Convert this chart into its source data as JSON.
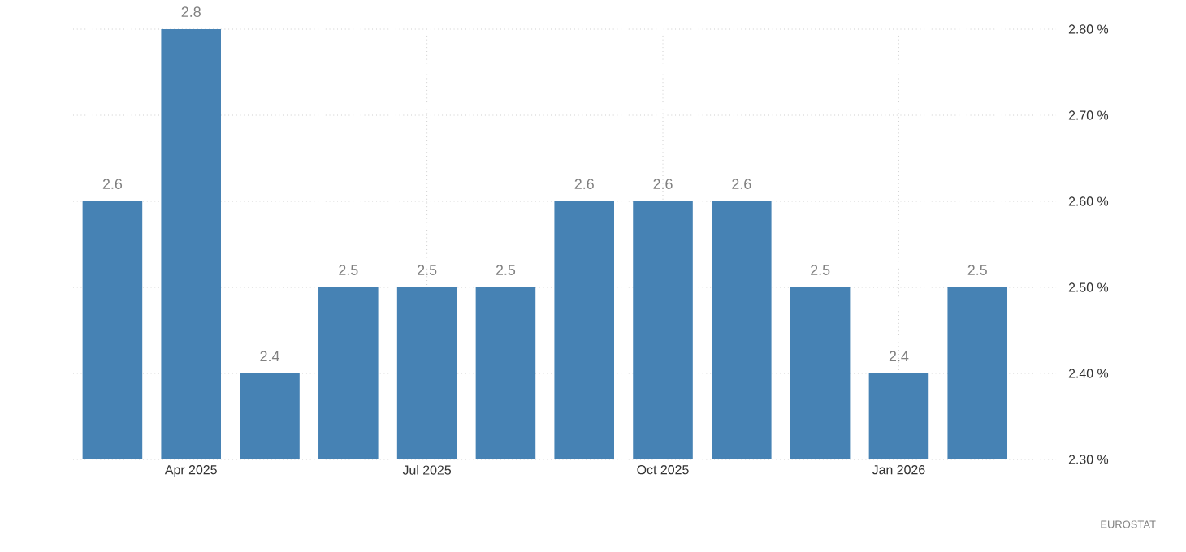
{
  "chart_data": {
    "type": "bar",
    "categories": [
      null,
      "Apr 2025",
      null,
      null,
      "Jul 2025",
      null,
      null,
      "Oct 2025",
      null,
      null,
      "Jan 2026",
      null
    ],
    "values": [
      2.6,
      2.8,
      2.4,
      2.5,
      2.5,
      2.5,
      2.6,
      2.6,
      2.6,
      2.5,
      2.4,
      2.5
    ],
    "color": "#4682b4",
    "ylim": [
      2.3,
      2.8
    ],
    "yticks": [
      {
        "value": 2.3,
        "label": "2.30 %"
      },
      {
        "value": 2.4,
        "label": "2.40 %"
      },
      {
        "value": 2.5,
        "label": "2.50 %"
      },
      {
        "value": 2.6,
        "label": "2.60 %"
      },
      {
        "value": 2.7,
        "label": "2.70 %"
      },
      {
        "value": 2.8,
        "label": "2.80 %"
      }
    ],
    "grid": true,
    "data_labels": true,
    "annotations": [
      "EUROSTAT"
    ]
  }
}
